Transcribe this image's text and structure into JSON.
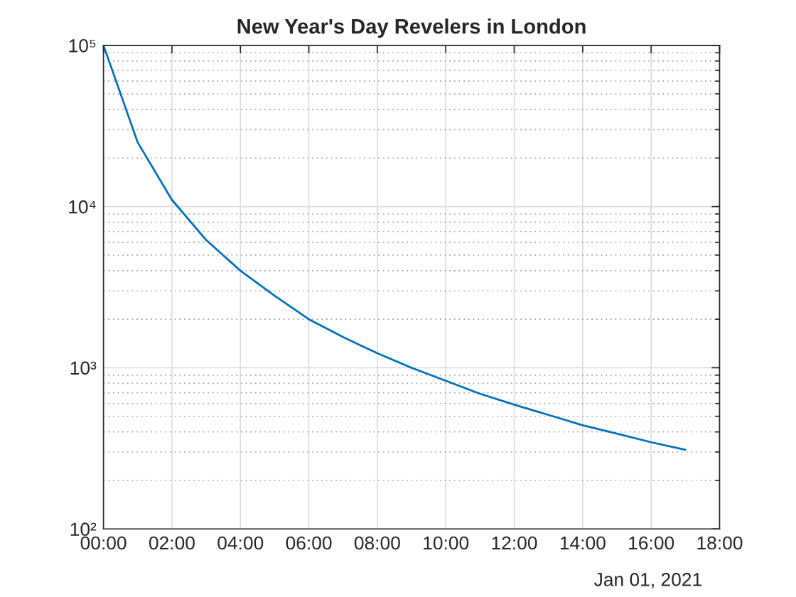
{
  "chart_data": {
    "type": "line",
    "title": "New Year's Day Revelers in London",
    "x": [
      "2021-01-01T00:00",
      "2021-01-01T01:00",
      "2021-01-01T02:00",
      "2021-01-01T03:00",
      "2021-01-01T04:00",
      "2021-01-01T05:00",
      "2021-01-01T06:00",
      "2021-01-01T07:00",
      "2021-01-01T08:00",
      "2021-01-01T09:00",
      "2021-01-01T10:00",
      "2021-01-01T11:00",
      "2021-01-01T12:00",
      "2021-01-01T13:00",
      "2021-01-01T14:00",
      "2021-01-01T15:00",
      "2021-01-01T16:00",
      "2021-01-01T17:00"
    ],
    "values": [
      100000,
      25000,
      11000,
      6200,
      4000,
      2800,
      2000,
      1550,
      1230,
      1000,
      830,
      690,
      590,
      510,
      440,
      390,
      345,
      310
    ],
    "color": "#0072bd",
    "log": "y",
    "grid": true,
    "xlim": [
      "2021-01-01T00:00",
      "2021-01-01T18:00"
    ],
    "xticks": [
      {
        "value": "2021-01-01T00:00",
        "label": "00:00"
      },
      {
        "value": "2021-01-01T02:00",
        "label": "02:00"
      },
      {
        "value": "2021-01-01T04:00",
        "label": "04:00"
      },
      {
        "value": "2021-01-01T06:00",
        "label": "06:00"
      },
      {
        "value": "2021-01-01T08:00",
        "label": "08:00"
      },
      {
        "value": "2021-01-01T10:00",
        "label": "10:00"
      },
      {
        "value": "2021-01-01T12:00",
        "label": "12:00"
      },
      {
        "value": "2021-01-01T14:00",
        "label": "14:00"
      },
      {
        "value": "2021-01-01T16:00",
        "label": "16:00"
      },
      {
        "value": "2021-01-01T18:00",
        "label": "18:00"
      }
    ],
    "ylim": [
      100,
      100000
    ],
    "yticks": [
      {
        "value": 100,
        "label": "10²"
      },
      {
        "value": 1000,
        "label": "10³"
      },
      {
        "value": 10000,
        "label": "10⁴"
      },
      {
        "value": 100000,
        "label": "10⁵"
      }
    ],
    "annotations": [
      "Jan 01, 2021"
    ]
  }
}
